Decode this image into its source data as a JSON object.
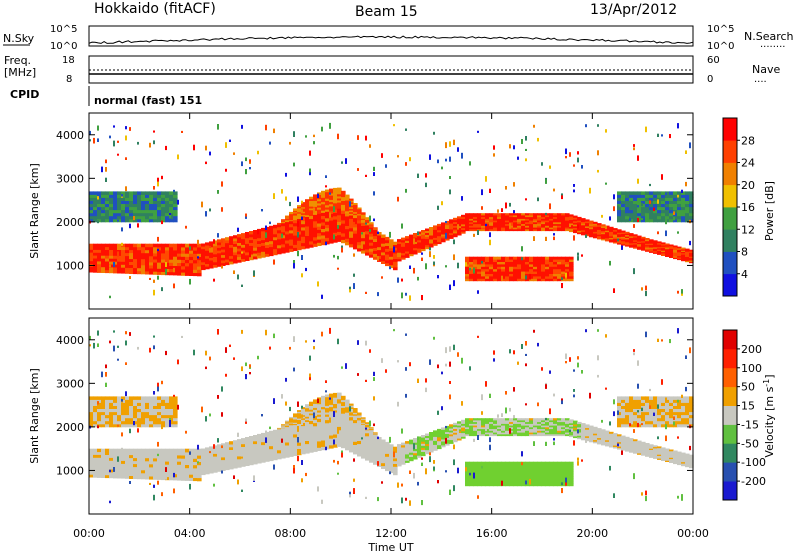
{
  "header": {
    "station": "Hokkaido (fitACF)",
    "beam": "Beam 15",
    "date": "13/Apr/2012"
  },
  "panels": {
    "nsky": {
      "label": "N.Sky",
      "left_ticks": [
        "10^5",
        "10^0"
      ],
      "right_ticks": [
        "10^5",
        "10^0"
      ],
      "right_label": "N.Search",
      "right_dots": "........"
    },
    "freq": {
      "label_top": "Freq.",
      "label_bot": "[MHz]",
      "left_ticks": [
        "18",
        "8"
      ],
      "right_ticks": [
        "60",
        "0"
      ],
      "right_label": "Nave",
      "right_dots": "...."
    },
    "cpid": {
      "label": "CPID",
      "text": "normal (fast) 151"
    }
  },
  "chart_data": [
    {
      "type": "heatmap",
      "name": "power",
      "ylabel": "Slant Range [km]",
      "yticks": [
        "1000",
        "2000",
        "3000",
        "4000"
      ],
      "xticks": [
        "00:00",
        "04:00",
        "08:00",
        "12:00",
        "16:00",
        "20:00",
        "00:00"
      ],
      "colorbar": {
        "label": "Power [dB]",
        "ticks": [
          "4",
          "8",
          "12",
          "16",
          "20",
          "24",
          "28"
        ],
        "colors": [
          "#1010e0",
          "#2050c0",
          "#308060",
          "#40a040",
          "#f0c000",
          "#f08000",
          "#ff4000",
          "#ff0000"
        ]
      }
    },
    {
      "type": "heatmap",
      "name": "velocity",
      "ylabel": "Slant Range [km]",
      "yticks": [
        "1000",
        "2000",
        "3000",
        "4000"
      ],
      "xticks": [
        "00:00",
        "04:00",
        "08:00",
        "12:00",
        "16:00",
        "20:00",
        "00:00"
      ],
      "xlabel": "Time UT",
      "colorbar": {
        "label": "Velocity [m s",
        "label_sup": "-1",
        "label_end": "]",
        "ticks": [
          "200",
          "100",
          "50",
          "15",
          "-15",
          "-50",
          "-100",
          "-200"
        ],
        "colors": [
          "#1a1ad0",
          "#2850b0",
          "#308860",
          "#60c040",
          "#c8c8c0",
          "#f0a000",
          "#ff6000",
          "#ff2000",
          "#e00000"
        ]
      }
    }
  ]
}
